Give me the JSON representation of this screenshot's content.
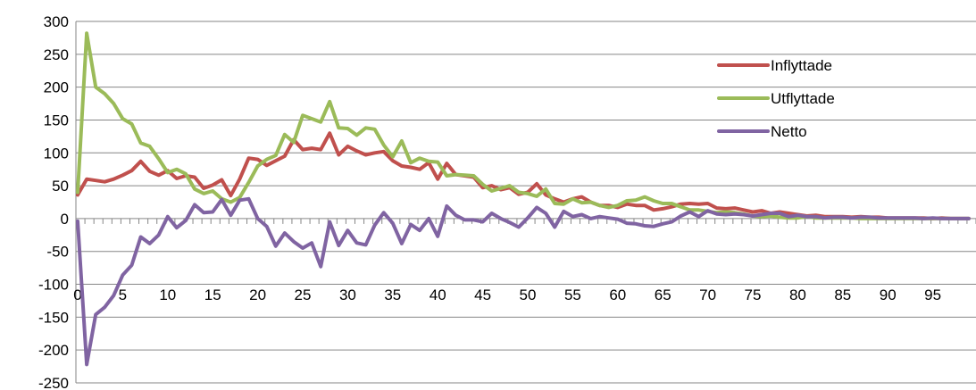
{
  "chart_data": {
    "type": "line",
    "title": "",
    "xlabel": "",
    "ylabel": "",
    "ylim": [
      -250,
      300
    ],
    "xlim": [
      0,
      99
    ],
    "y_ticks": [
      300,
      250,
      200,
      150,
      100,
      50,
      0,
      -50,
      -100,
      -150,
      -200,
      -250
    ],
    "x_ticks": [
      0,
      5,
      10,
      15,
      20,
      25,
      30,
      35,
      40,
      45,
      50,
      55,
      60,
      65,
      70,
      75,
      80,
      85,
      90,
      95
    ],
    "grid": "horizontal",
    "legend_position": "right",
    "x": [
      0,
      1,
      2,
      3,
      4,
      5,
      6,
      7,
      8,
      9,
      10,
      11,
      12,
      13,
      14,
      15,
      16,
      17,
      18,
      19,
      20,
      21,
      22,
      23,
      24,
      25,
      26,
      27,
      28,
      29,
      30,
      31,
      32,
      33,
      34,
      35,
      36,
      37,
      38,
      39,
      40,
      41,
      42,
      43,
      44,
      45,
      46,
      47,
      48,
      49,
      50,
      51,
      52,
      53,
      54,
      55,
      56,
      57,
      58,
      59,
      60,
      61,
      62,
      63,
      64,
      65,
      66,
      67,
      68,
      69,
      70,
      71,
      72,
      73,
      74,
      75,
      76,
      77,
      78,
      79,
      80,
      81,
      82,
      83,
      84,
      85,
      86,
      87,
      88,
      89,
      90,
      91,
      92,
      93,
      94,
      95,
      96,
      97,
      98,
      99
    ],
    "series": [
      {
        "name": "Inflyttade",
        "color": "#c0504d",
        "values": [
          36,
          60,
          58,
          56,
          60,
          66,
          73,
          87,
          72,
          66,
          73,
          61,
          65,
          63,
          46,
          51,
          59,
          35,
          60,
          92,
          90,
          81,
          88,
          95,
          120,
          105,
          107,
          105,
          130,
          97,
          110,
          103,
          97,
          100,
          102,
          88,
          80,
          78,
          75,
          85,
          60,
          84,
          67,
          65,
          63,
          47,
          50,
          44,
          47,
          37,
          40,
          53,
          36,
          30,
          25,
          30,
          33,
          25,
          20,
          20,
          17,
          22,
          20,
          20,
          13,
          15,
          18,
          22,
          23,
          22,
          23,
          16,
          15,
          16,
          13,
          10,
          12,
          8,
          10,
          8,
          6,
          4,
          5,
          3,
          3,
          3,
          2,
          3,
          2,
          2,
          1,
          1,
          1,
          1,
          1,
          0,
          1,
          0,
          0,
          0
        ]
      },
      {
        "name": "Utflyttade",
        "color": "#9bbb59",
        "values": [
          40,
          282,
          200,
          190,
          175,
          152,
          144,
          115,
          110,
          91,
          70,
          75,
          68,
          45,
          38,
          42,
          30,
          25,
          32,
          55,
          80,
          90,
          96,
          128,
          116,
          157,
          152,
          147,
          178,
          138,
          137,
          127,
          138,
          136,
          112,
          94,
          118,
          85,
          92,
          87,
          86,
          65,
          67,
          66,
          65,
          52,
          42,
          46,
          50,
          40,
          38,
          34,
          45,
          23,
          22,
          30,
          24,
          25,
          20,
          17,
          20,
          27,
          28,
          33,
          27,
          23,
          23,
          18,
          13,
          13,
          11,
          9,
          10,
          9,
          7,
          4,
          3,
          4,
          2,
          1,
          1,
          3,
          1,
          1,
          1,
          1,
          1,
          0,
          0,
          0,
          0,
          0,
          0,
          0,
          0,
          0,
          0,
          0,
          0,
          0
        ]
      },
      {
        "name": "Netto",
        "color": "#8064a2",
        "values": [
          -4,
          -222,
          -146,
          -135,
          -117,
          -86,
          -71,
          -28,
          -38,
          -25,
          3,
          -14,
          -3,
          21,
          9,
          10,
          29,
          5,
          28,
          30,
          0,
          -12,
          -42,
          -22,
          -35,
          -45,
          -37,
          -73,
          -5,
          -41,
          -18,
          -37,
          -40,
          -10,
          9,
          -7,
          -38,
          -9,
          -18,
          0,
          -27,
          19,
          5,
          -2,
          -2,
          -5,
          8,
          0,
          -6,
          -13,
          1,
          17,
          8,
          -13,
          11,
          3,
          6,
          0,
          3,
          1,
          -1,
          -7,
          -8,
          -11,
          -12,
          -8,
          -5,
          4,
          10,
          3,
          12,
          7,
          6,
          7,
          6,
          4,
          6,
          8,
          8,
          3,
          5,
          3,
          3,
          1,
          2,
          2,
          1,
          2,
          2,
          1,
          1,
          1,
          1,
          1,
          0,
          1,
          0,
          0,
          0,
          0
        ]
      }
    ]
  }
}
